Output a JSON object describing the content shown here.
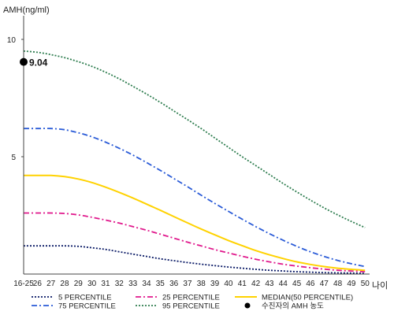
{
  "chart_data": {
    "type": "line",
    "ylabel": "AMH(ng/ml)",
    "xlabel": "나이",
    "x": [
      "16-25",
      "26",
      "27",
      "28",
      "29",
      "30",
      "31",
      "32",
      "33",
      "34",
      "35",
      "36",
      "37",
      "38",
      "39",
      "40",
      "41",
      "42",
      "43",
      "44",
      "45",
      "46",
      "47",
      "48",
      "49",
      "50"
    ],
    "y_ticks": [
      5,
      10
    ],
    "ylim": [
      0,
      11
    ],
    "grid": false,
    "legend_position": "bottom",
    "series": [
      {
        "name": "5 PERCENTILE",
        "key": "p5",
        "color": "#0a1a66",
        "dash": "2,2",
        "values": [
          1.2,
          1.2,
          1.2,
          1.2,
          1.18,
          1.12,
          1.05,
          0.95,
          0.85,
          0.75,
          0.65,
          0.57,
          0.49,
          0.42,
          0.36,
          0.3,
          0.25,
          0.2,
          0.16,
          0.13,
          0.1,
          0.08,
          0.06,
          0.05,
          0.04,
          0.03
        ]
      },
      {
        "name": "25 PERCENTILE",
        "key": "p25",
        "color": "#e0188c",
        "dash": "7,3,2,3",
        "values": [
          2.6,
          2.6,
          2.6,
          2.58,
          2.52,
          2.42,
          2.3,
          2.17,
          2.02,
          1.87,
          1.7,
          1.53,
          1.36,
          1.2,
          1.04,
          0.9,
          0.76,
          0.63,
          0.52,
          0.42,
          0.34,
          0.27,
          0.21,
          0.16,
          0.13,
          0.1
        ]
      },
      {
        "name": "MEDIAN(50 PERCENTILE)",
        "key": "p50",
        "color": "#ffd200",
        "dash": "",
        "values": [
          4.2,
          4.2,
          4.2,
          4.15,
          4.05,
          3.9,
          3.7,
          3.48,
          3.24,
          2.98,
          2.72,
          2.45,
          2.18,
          1.92,
          1.67,
          1.43,
          1.21,
          1.0,
          0.82,
          0.66,
          0.52,
          0.41,
          0.32,
          0.25,
          0.2,
          0.16
        ]
      },
      {
        "name": "75 PERCENTILE",
        "key": "p75",
        "color": "#2a5bd7",
        "dash": "7,3,2,3",
        "values": [
          6.2,
          6.2,
          6.2,
          6.15,
          6.02,
          5.85,
          5.62,
          5.36,
          5.07,
          4.75,
          4.42,
          4.07,
          3.72,
          3.36,
          3.01,
          2.67,
          2.34,
          2.02,
          1.72,
          1.44,
          1.18,
          0.95,
          0.75,
          0.58,
          0.44,
          0.32
        ]
      },
      {
        "name": "95 PERCENTILE",
        "key": "p95",
        "color": "#2e7d4f",
        "dash": "2,2",
        "values": [
          9.5,
          9.45,
          9.35,
          9.22,
          9.05,
          8.85,
          8.6,
          8.32,
          8.0,
          7.67,
          7.32,
          6.95,
          6.58,
          6.2,
          5.8,
          5.4,
          5.0,
          4.62,
          4.24,
          3.86,
          3.5,
          3.15,
          2.82,
          2.52,
          2.24,
          1.98
        ]
      }
    ],
    "patient_point": {
      "label": "수진자의 AMH 농도",
      "x": "16-25",
      "value": 9.04,
      "value_label": "9.04",
      "color": "#000000"
    }
  }
}
